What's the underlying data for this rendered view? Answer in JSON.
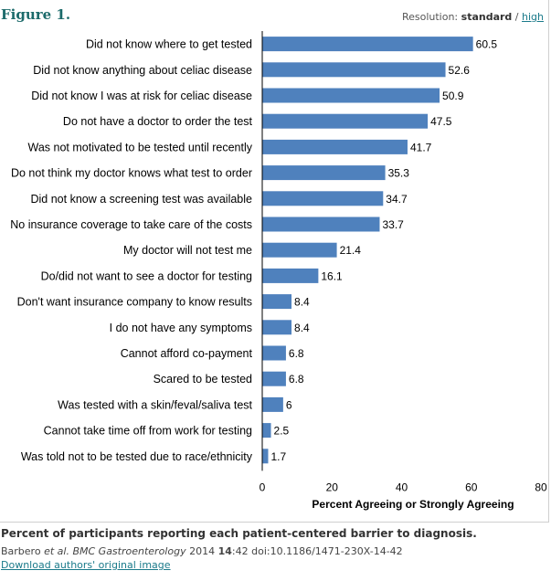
{
  "figure": {
    "title": "Figure 1.",
    "resolution_label": "Resolution:",
    "resolution_current": "standard",
    "resolution_separator": "/",
    "resolution_alt": "high"
  },
  "chart_data": {
    "type": "bar",
    "orientation": "horizontal",
    "categories": [
      "Did not know where to get tested",
      "Did not know anything about celiac disease",
      "Did not know I was at risk for celiac disease",
      "Do not have a doctor to order the test",
      "Was not motivated to be tested until recently",
      "Do not think my doctor knows what test to order",
      "Did not know a screening test was available",
      "No insurance coverage to take care of the costs",
      "My doctor will not test me",
      "Do/did not want to see a doctor for testing",
      "Don't want insurance company to know results",
      "I do not have any symptoms",
      "Cannot afford co-payment",
      "Scared to be tested",
      "Was tested with a skin/feval/saliva test",
      "Cannot take time off from work for testing",
      "Was told not to be tested due to race/ethnicity"
    ],
    "values": [
      60.5,
      52.6,
      50.9,
      47.5,
      41.7,
      35.3,
      34.7,
      33.7,
      21.4,
      16.1,
      8.4,
      8.4,
      6.8,
      6.8,
      6,
      2.5,
      1.7
    ],
    "value_labels": [
      "60.5",
      "52.6",
      "50.9",
      "47.5",
      "41.7",
      "35.3",
      "34.7",
      "33.7",
      "21.4",
      "16.1",
      "8.4",
      "8.4",
      "6.8",
      "6.8",
      "6",
      "2.5",
      "1.7"
    ],
    "xlim": [
      0,
      80
    ],
    "xticks": [
      "0",
      "20",
      "40",
      "60",
      "80"
    ],
    "xlabel": "Percent Agreeing or Strongly Agreeing",
    "bar_color": "#4f81bd",
    "grid": false
  },
  "caption": {
    "text": "Percent of participants reporting each patient-centered barrier to diagnosis.",
    "authors": "Barbero",
    "etal": "et al.",
    "journal": "BMC Gastroenterology",
    "year": "2014",
    "volume": "14",
    "pages": ":42",
    "doi": "doi:10.1186/1471-230X-14-42",
    "download_link": "Download authors' original image"
  }
}
